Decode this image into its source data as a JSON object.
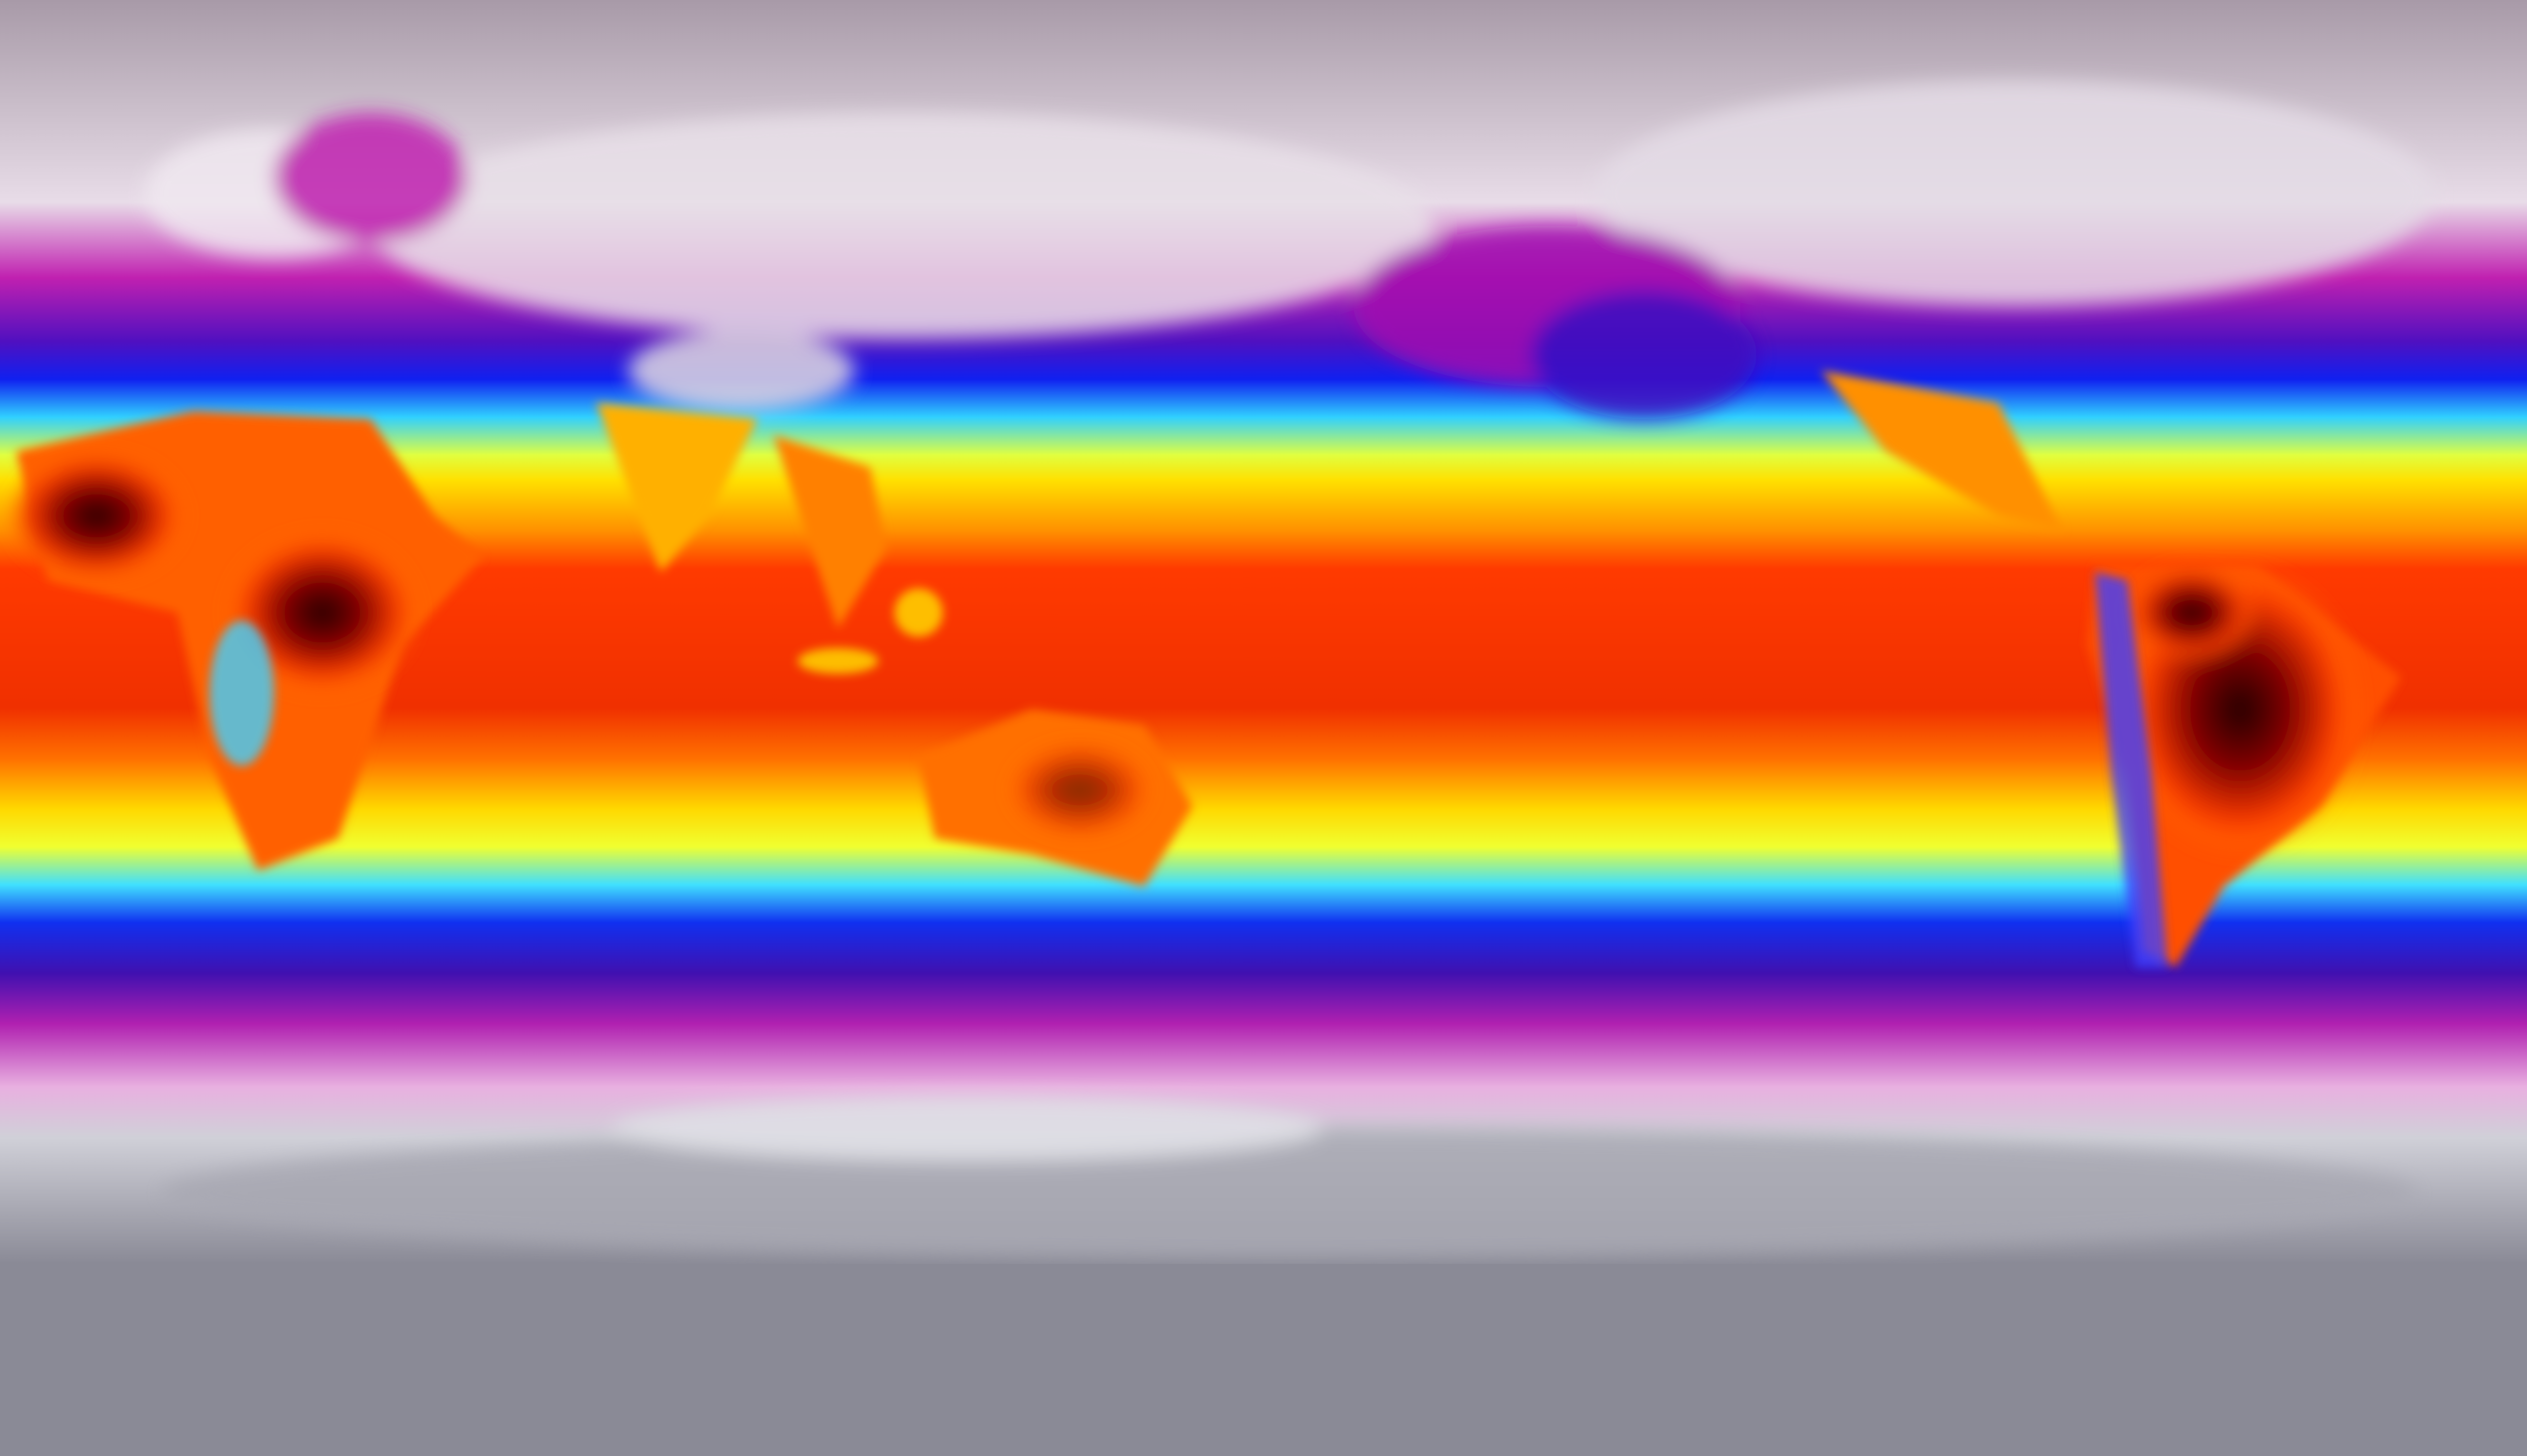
{
  "map": {
    "type": "global equirectangular temperature map",
    "colormap": {
      "polar_cold": "#9a8fa0",
      "cold": "#e8dce8",
      "cool_magenta": "#c020b0",
      "blue": "#1020f0",
      "cyan": "#30d0ff",
      "yellow": "#ffe000",
      "orange": "#ff9000",
      "red": "#ff3a00",
      "hot_dark": "#3a0000"
    }
  }
}
